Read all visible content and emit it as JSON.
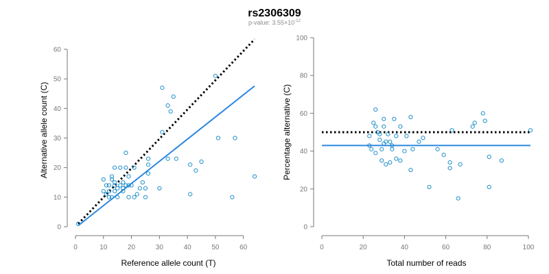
{
  "figure": {
    "title": "rs2306309",
    "subtitle_prefix": "p-value: 3.55×10",
    "subtitle_exponent": "-12"
  },
  "chart_data": [
    {
      "type": "scatter",
      "xlabel": "Reference allele count (T)",
      "ylabel": "Alternative allele count (C)",
      "xlim": [
        0,
        64
      ],
      "ylim": [
        0,
        60
      ],
      "xticks": [
        0,
        10,
        20,
        30,
        40,
        50,
        60
      ],
      "yticks": [
        0,
        10,
        20,
        30,
        40,
        50,
        60
      ],
      "grid": false,
      "colors": {
        "points": "#1f8ecb",
        "fit": "#2b86e0",
        "reference": "#000000"
      },
      "points": [
        {
          "x": 1,
          "y": 1
        },
        {
          "x": 10,
          "y": 16
        },
        {
          "x": 10,
          "y": 12
        },
        {
          "x": 11,
          "y": 14
        },
        {
          "x": 11,
          "y": 11
        },
        {
          "x": 12,
          "y": 14
        },
        {
          "x": 12,
          "y": 12
        },
        {
          "x": 12,
          "y": 10
        },
        {
          "x": 13,
          "y": 17
        },
        {
          "x": 13,
          "y": 16
        },
        {
          "x": 13,
          "y": 10
        },
        {
          "x": 14,
          "y": 14
        },
        {
          "x": 14,
          "y": 15
        },
        {
          "x": 14,
          "y": 12
        },
        {
          "x": 14,
          "y": 20
        },
        {
          "x": 15,
          "y": 13
        },
        {
          "x": 15,
          "y": 10
        },
        {
          "x": 16,
          "y": 20
        },
        {
          "x": 16,
          "y": 14
        },
        {
          "x": 17,
          "y": 12
        },
        {
          "x": 17,
          "y": 13
        },
        {
          "x": 17,
          "y": 15
        },
        {
          "x": 18,
          "y": 25
        },
        {
          "x": 18,
          "y": 20
        },
        {
          "x": 18,
          "y": 14
        },
        {
          "x": 19,
          "y": 17
        },
        {
          "x": 19,
          "y": 14
        },
        {
          "x": 19,
          "y": 10
        },
        {
          "x": 20,
          "y": 14
        },
        {
          "x": 21,
          "y": 20
        },
        {
          "x": 21,
          "y": 10
        },
        {
          "x": 22,
          "y": 11
        },
        {
          "x": 23,
          "y": 13
        },
        {
          "x": 24,
          "y": 15
        },
        {
          "x": 25,
          "y": 10
        },
        {
          "x": 25,
          "y": 13
        },
        {
          "x": 26,
          "y": 18
        },
        {
          "x": 26,
          "y": 21
        },
        {
          "x": 26,
          "y": 23
        },
        {
          "x": 30,
          "y": 13
        },
        {
          "x": 31,
          "y": 47
        },
        {
          "x": 31,
          "y": 32
        },
        {
          "x": 33,
          "y": 41
        },
        {
          "x": 33,
          "y": 23
        },
        {
          "x": 34,
          "y": 39
        },
        {
          "x": 35,
          "y": 44
        },
        {
          "x": 36,
          "y": 23
        },
        {
          "x": 41,
          "y": 21
        },
        {
          "x": 41,
          "y": 11
        },
        {
          "x": 43,
          "y": 19
        },
        {
          "x": 45,
          "y": 22
        },
        {
          "x": 50,
          "y": 51
        },
        {
          "x": 51,
          "y": 30
        },
        {
          "x": 56,
          "y": 10
        },
        {
          "x": 57,
          "y": 30
        },
        {
          "x": 64,
          "y": 17
        }
      ],
      "fit_line": {
        "x": [
          1,
          64
        ],
        "y": [
          0.4,
          47.6
        ]
      },
      "reference_line": {
        "x": [
          1,
          64
        ],
        "y": [
          1,
          63.4
        ]
      }
    },
    {
      "type": "scatter",
      "xlabel": "Total number of reads",
      "ylabel": "Percentage alternative (C)",
      "xlim": [
        0,
        100
      ],
      "ylim": [
        0,
        100
      ],
      "xticks": [
        0,
        20,
        40,
        60,
        80,
        100
      ],
      "yticks": [
        0,
        20,
        40,
        60,
        80,
        100
      ],
      "grid": false,
      "colors": {
        "points": "#1f8ecb",
        "fit": "#2b86e0",
        "reference": "#000000"
      },
      "points": [
        {
          "x": 23,
          "y": 43
        },
        {
          "x": 23,
          "y": 48
        },
        {
          "x": 24,
          "y": 41
        },
        {
          "x": 25,
          "y": 55
        },
        {
          "x": 26,
          "y": 62
        },
        {
          "x": 26,
          "y": 53
        },
        {
          "x": 26,
          "y": 39
        },
        {
          "x": 27,
          "y": 50
        },
        {
          "x": 28,
          "y": 46
        },
        {
          "x": 28,
          "y": 49
        },
        {
          "x": 29,
          "y": 35
        },
        {
          "x": 29,
          "y": 41
        },
        {
          "x": 30,
          "y": 57
        },
        {
          "x": 30,
          "y": 53
        },
        {
          "x": 30,
          "y": 44
        },
        {
          "x": 31,
          "y": 45
        },
        {
          "x": 31,
          "y": 33
        },
        {
          "x": 32,
          "y": 49
        },
        {
          "x": 33,
          "y": 45
        },
        {
          "x": 33,
          "y": 34
        },
        {
          "x": 34,
          "y": 43
        },
        {
          "x": 34,
          "y": 41
        },
        {
          "x": 35,
          "y": 57
        },
        {
          "x": 36,
          "y": 48
        },
        {
          "x": 36,
          "y": 36
        },
        {
          "x": 38,
          "y": 53
        },
        {
          "x": 38,
          "y": 35
        },
        {
          "x": 40,
          "y": 40
        },
        {
          "x": 41,
          "y": 48
        },
        {
          "x": 43,
          "y": 58
        },
        {
          "x": 43,
          "y": 30
        },
        {
          "x": 44,
          "y": 41
        },
        {
          "x": 47,
          "y": 45
        },
        {
          "x": 49,
          "y": 47
        },
        {
          "x": 52,
          "y": 21
        },
        {
          "x": 56,
          "y": 41
        },
        {
          "x": 59,
          "y": 38
        },
        {
          "x": 62,
          "y": 31
        },
        {
          "x": 62,
          "y": 34
        },
        {
          "x": 63,
          "y": 51
        },
        {
          "x": 66,
          "y": 15
        },
        {
          "x": 67,
          "y": 33
        },
        {
          "x": 73,
          "y": 53
        },
        {
          "x": 74,
          "y": 55
        },
        {
          "x": 78,
          "y": 60
        },
        {
          "x": 79,
          "y": 56
        },
        {
          "x": 81,
          "y": 21
        },
        {
          "x": 81,
          "y": 37
        },
        {
          "x": 87,
          "y": 35
        },
        {
          "x": 101,
          "y": 51
        }
      ],
      "fit_line": {
        "x": [
          0,
          101
        ],
        "y": [
          43,
          43
        ]
      },
      "reference_line": {
        "x": [
          0,
          101
        ],
        "y": [
          50,
          50
        ]
      }
    }
  ]
}
